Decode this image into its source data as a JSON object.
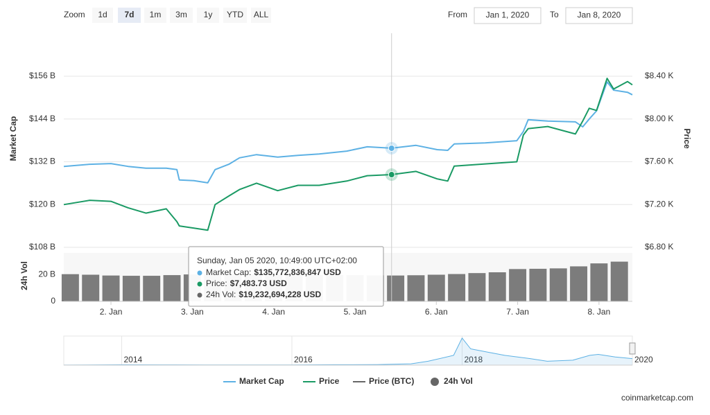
{
  "toolbar": {
    "zoom_label": "Zoom",
    "buttons": [
      "1d",
      "7d",
      "1m",
      "3m",
      "1y",
      "YTD",
      "ALL"
    ],
    "selected_index": 1,
    "from_label": "From",
    "from": "Jan 1, 2020",
    "to_label": "To",
    "to": "Jan 8, 2020"
  },
  "chart_data": [
    {
      "type": "line",
      "ylabel": "Market Cap",
      "y2label": "Price",
      "x": [
        1.42,
        1.74,
        2.0,
        2.21,
        2.43,
        2.68,
        2.81,
        2.84,
        3.02,
        3.19,
        3.28,
        3.45,
        3.58,
        3.79,
        4.05,
        4.3,
        4.56,
        4.9,
        5.15,
        5.45,
        5.75,
        6.01,
        6.14,
        6.22,
        6.6,
        6.99,
        7.07,
        7.13,
        7.37,
        7.71,
        7.8,
        7.88,
        7.97,
        8.1,
        8.18,
        8.35,
        8.41
      ],
      "xlim": [
        1.42,
        8.41
      ],
      "ylim": [
        108,
        156
      ],
      "yticks": [
        {
          "value": 156,
          "label": "$156 B"
        },
        {
          "value": 144,
          "label": "$144 B"
        },
        {
          "value": 132,
          "label": "$132 B"
        },
        {
          "value": 120,
          "label": "$120 B"
        },
        {
          "value": 108,
          "label": "$108 B"
        }
      ],
      "y2lim": [
        6.8,
        8.4
      ],
      "y2ticks": [
        {
          "value": 8.4,
          "label": "$8.40 K"
        },
        {
          "value": 8.0,
          "label": "$8.00 K"
        },
        {
          "value": 7.6,
          "label": "$7.60 K"
        },
        {
          "value": 7.2,
          "label": "$7.20 K"
        },
        {
          "value": 6.8,
          "label": "$6.80 K"
        }
      ],
      "grid": true,
      "series": [
        {
          "name": "Market Cap",
          "color": "#5db1e4",
          "values": [
            130.7,
            131.3,
            131.5,
            130.7,
            130.2,
            130.2,
            129.8,
            126.9,
            126.7,
            126.1,
            129.8,
            131.3,
            133.1,
            134,
            133.3,
            133.8,
            134.2,
            135,
            136.2,
            135.8,
            136.6,
            135.4,
            135.2,
            137,
            137.3,
            137.9,
            140.5,
            143.8,
            143.4,
            143.2,
            141.8,
            144,
            146.3,
            154.4,
            152.1,
            151.5,
            150.8
          ]
        },
        {
          "name": "Price",
          "color": "#1a9a64",
          "axis": "y2",
          "values": [
            7.2,
            7.24,
            7.23,
            7.17,
            7.12,
            7.16,
            7.04,
            7.0,
            6.98,
            6.96,
            7.2,
            7.28,
            7.34,
            7.4,
            7.33,
            7.38,
            7.38,
            7.42,
            7.47,
            7.48,
            7.51,
            7.44,
            7.42,
            7.56,
            7.58,
            7.6,
            7.85,
            7.91,
            7.93,
            7.86,
            7.98,
            8.1,
            8.08,
            8.38,
            8.28,
            8.35,
            8.32
          ]
        },
        {
          "name": "Price (BTC)",
          "color": "#666666",
          "visible": false
        }
      ]
    },
    {
      "type": "bar",
      "name": "24h Vol",
      "ylabel": "24h Vol",
      "color": "#666666",
      "x": [
        1.5,
        1.75,
        2.0,
        2.25,
        2.5,
        2.75,
        3.0,
        3.25,
        3.5,
        3.75,
        4.0,
        4.25,
        4.5,
        4.75,
        5.0,
        5.25,
        5.5,
        5.75,
        6.0,
        6.25,
        6.5,
        6.75,
        7.0,
        7.25,
        7.5,
        7.75,
        8.0,
        8.25
      ],
      "values": [
        20.2,
        19.8,
        19.2,
        19,
        19,
        19.5,
        20,
        20.3,
        20.2,
        20,
        20,
        20,
        19.8,
        19.6,
        19.5,
        19.3,
        19.2,
        19.4,
        19.8,
        20.3,
        21,
        21.6,
        24,
        24.2,
        24.5,
        26,
        28.2,
        29.5
      ],
      "xlim": [
        1.42,
        8.41
      ],
      "xticks": [
        {
          "value": 2,
          "label": "2. Jan"
        },
        {
          "value": 3,
          "label": "3. Jan"
        },
        {
          "value": 4,
          "label": "4. Jan"
        },
        {
          "value": 5,
          "label": "5. Jan"
        },
        {
          "value": 6,
          "label": "6. Jan"
        },
        {
          "value": 7,
          "label": "7. Jan"
        },
        {
          "value": 8,
          "label": "8. Jan"
        }
      ],
      "ylim": [
        0,
        36
      ],
      "yticks": [
        {
          "value": 20,
          "label": "20 B"
        },
        0
      ]
    },
    {
      "type": "line",
      "area": true,
      "x": [
        2013.32,
        2014,
        2014.5,
        2015,
        2016,
        2016.5,
        2017,
        2017.4,
        2017.6,
        2017.9,
        2018,
        2018.1,
        2018.3,
        2018.5,
        2018.8,
        2019,
        2019.3,
        2019.5,
        2019.6,
        2019.8,
        2020
      ],
      "xlim": [
        2013.32,
        2020
      ],
      "xticks": [
        2014,
        2016,
        2018,
        2020
      ],
      "ylim": [
        0,
        850
      ],
      "series": [
        {
          "color": "#5db1e4",
          "values": [
            1.5,
            10,
            8,
            4,
            7,
            12,
            18,
            40,
            120,
            300,
            830,
            500,
            400,
            300,
            200,
            120,
            150,
            300,
            330,
            250,
            200
          ]
        }
      ]
    }
  ],
  "tooltip": {
    "title": "Sunday, Jan 05 2020, 10:49:00 UTC+02:00",
    "rows": [
      {
        "label": "Market Cap:",
        "value": "$135,772,836,847 USD"
      },
      {
        "label": "Price:",
        "value": "$7,483.73 USD"
      },
      {
        "label": "24h Vol:",
        "value": "$19,232,694,228 USD"
      }
    ]
  },
  "credit": "coinmarketcap.com"
}
